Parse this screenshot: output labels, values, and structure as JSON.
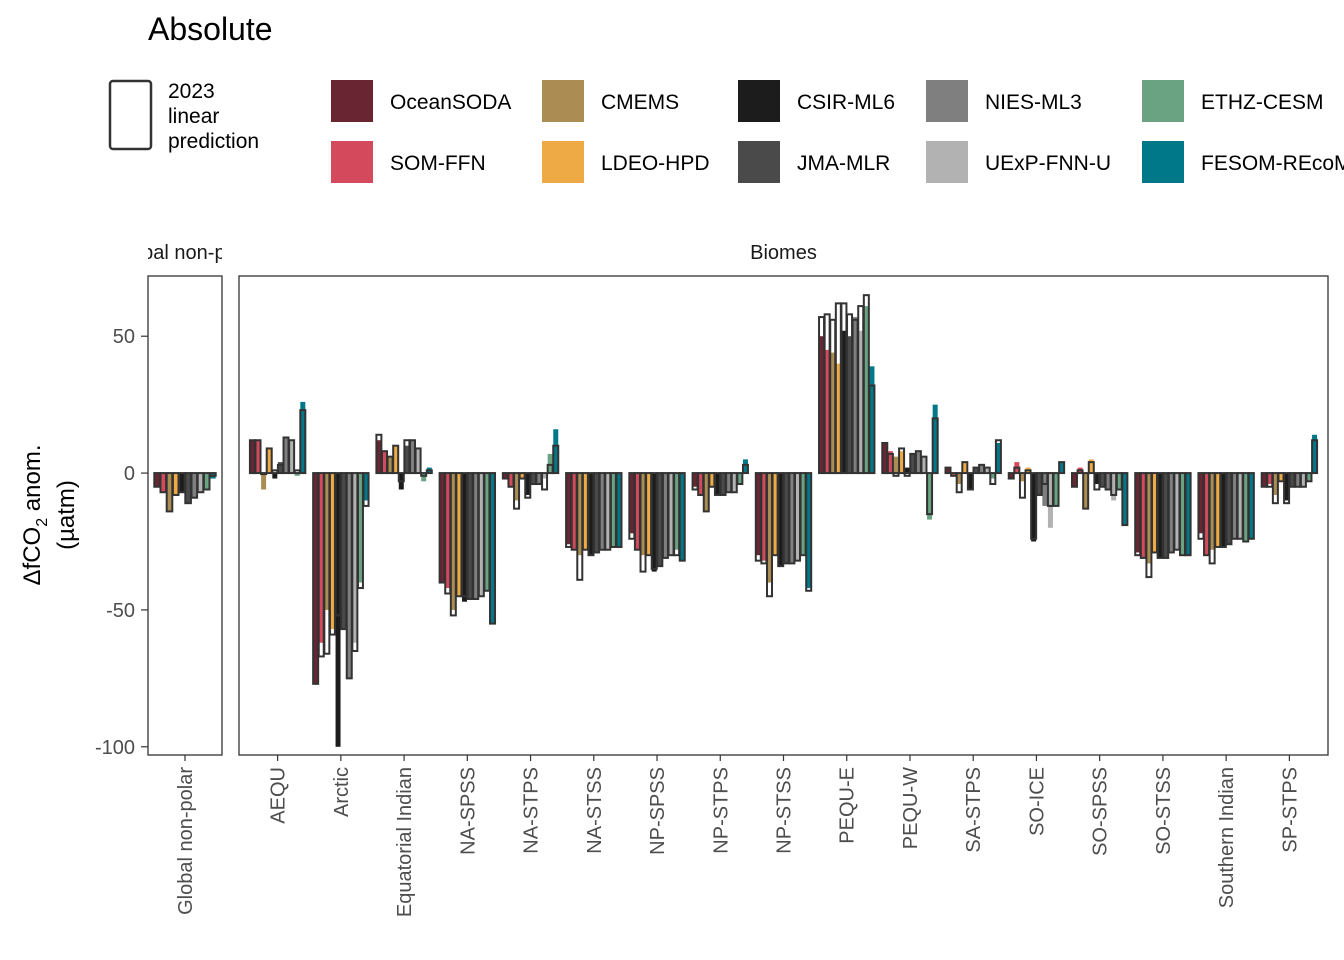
{
  "chart_data": {
    "type": "bar",
    "title": "Absolute",
    "ylabel": "ΔfCO2 anom. (µatm)",
    "ylabel_main": "ΔfCO",
    "ylabel_sub": "2",
    "ylabel_rest": " anom.",
    "ylabel_unit": "(µatm)",
    "ylim": [
      -103,
      72
    ],
    "yticks": [
      50,
      0,
      -50,
      -100
    ],
    "ytick_labels": [
      "50",
      "0",
      "-50",
      "-100"
    ],
    "grid": false,
    "legend_position": "top",
    "legend_outline_label": [
      "2023",
      "linear",
      "prediction"
    ],
    "panels": [
      {
        "label": "Global non-polar",
        "strip": "Global non-polar"
      },
      {
        "label": "Biomes",
        "strip": "Biomes"
      }
    ],
    "series": [
      {
        "name": "OceanSODA",
        "color": "#6a2532"
      },
      {
        "name": "SOM-FFN",
        "color": "#d44a5c"
      },
      {
        "name": "CMEMS",
        "color": "#ab8c52"
      },
      {
        "name": "LDEO-HPD",
        "color": "#eeab45"
      },
      {
        "name": "CSIR-ML6",
        "color": "#1c1c1c"
      },
      {
        "name": "JMA-MLR",
        "color": "#4a4a4a"
      },
      {
        "name": "NIES-ML3",
        "color": "#7f7f7f"
      },
      {
        "name": "UExP-FNN-U",
        "color": "#b2b2b2"
      },
      {
        "name": "ETHZ-CESM",
        "color": "#69a382"
      },
      {
        "name": "FESOM-REcoM",
        "color": "#00788a"
      }
    ],
    "legend_layout": [
      [
        "OceanSODA",
        "CMEMS",
        "CSIR-ML6",
        "NIES-ML3",
        "ETHZ-CESM"
      ],
      [
        "SOM-FFN",
        "LDEO-HPD",
        "JMA-MLR",
        "UExP-FNN-U",
        "FESOM-REcoM"
      ]
    ],
    "regions": [
      {
        "name": "Global non-polar",
        "panel": 0,
        "values": [
          -5,
          -7,
          -14,
          -8,
          -7,
          -11,
          -9,
          -7,
          -6,
          -2
        ],
        "predicted": [
          -5,
          -7,
          -14,
          -8,
          -7,
          -11,
          -9,
          -7,
          -6,
          -1
        ]
      },
      {
        "name": "AEQU",
        "panel": 1,
        "values": [
          12,
          12,
          -6,
          9,
          -2,
          4,
          13,
          12,
          -1,
          26
        ],
        "predicted": [
          12,
          12,
          0,
          9,
          1,
          3,
          13,
          12,
          1,
          23
        ]
      },
      {
        "name": "Arctic",
        "panel": 1,
        "values": [
          -77,
          -62,
          -50,
          -57,
          -100,
          -57,
          -75,
          -62,
          -40,
          -10
        ],
        "predicted": [
          -77,
          -67,
          -66,
          -59,
          -52,
          -57,
          -75,
          -65,
          -42,
          -12
        ]
      },
      {
        "name": "Equatorial Indian",
        "panel": 1,
        "values": [
          12,
          8,
          6,
          10,
          -6,
          10,
          12,
          9,
          -3,
          2
        ],
        "predicted": [
          14,
          8,
          6,
          10,
          -3,
          12,
          12,
          9,
          -1,
          1
        ]
      },
      {
        "name": "NA-SPSS",
        "panel": 1,
        "values": [
          -40,
          -42,
          -50,
          -45,
          -47,
          -46,
          -46,
          -45,
          -43,
          -55
        ],
        "predicted": [
          -40,
          -44,
          -52,
          -45,
          -45,
          -46,
          -46,
          -45,
          -43,
          -55
        ]
      },
      {
        "name": "NA-STPS",
        "panel": 1,
        "values": [
          -2,
          -5,
          -10,
          -2,
          -8,
          -4,
          -4,
          -2,
          7,
          16
        ],
        "predicted": [
          -2,
          -5,
          -13,
          -2,
          -9,
          -4,
          -4,
          -6,
          3,
          10
        ]
      },
      {
        "name": "NA-STSS",
        "panel": 1,
        "values": [
          -26,
          -28,
          -30,
          -28,
          -30,
          -29,
          -28,
          -28,
          -27,
          -27
        ],
        "predicted": [
          -27,
          -28,
          -39,
          -28,
          -30,
          -29,
          -28,
          -28,
          -27,
          -27
        ]
      },
      {
        "name": "NP-SPSS",
        "panel": 1,
        "values": [
          -22,
          -28,
          -30,
          -30,
          -36,
          -34,
          -31,
          -30,
          -28,
          -32
        ],
        "predicted": [
          -24,
          -28,
          -36,
          -30,
          -35,
          -34,
          -31,
          -30,
          -30,
          -32
        ]
      },
      {
        "name": "NP-STPS",
        "panel": 1,
        "values": [
          -5,
          -8,
          -14,
          -5,
          -8,
          -8,
          -7,
          -7,
          -4,
          5
        ],
        "predicted": [
          -6,
          -8,
          -14,
          -5,
          -8,
          -8,
          -7,
          -7,
          -4,
          3
        ]
      },
      {
        "name": "NP-STSS",
        "panel": 1,
        "values": [
          -30,
          -32,
          -40,
          -30,
          -34,
          -33,
          -33,
          -32,
          -30,
          -42
        ],
        "predicted": [
          -32,
          -33,
          -45,
          -30,
          -34,
          -33,
          -33,
          -32,
          -30,
          -43
        ]
      },
      {
        "name": "PEQU-E",
        "panel": 1,
        "values": [
          50,
          45,
          44,
          40,
          52,
          50,
          57,
          52,
          61,
          39
        ],
        "predicted": [
          57,
          58,
          56,
          62,
          62,
          58,
          56,
          61,
          65,
          32
        ]
      },
      {
        "name": "PEQU-W",
        "panel": 1,
        "values": [
          11,
          8,
          6,
          8,
          2,
          7,
          8,
          6,
          -17,
          25
        ],
        "predicted": [
          11,
          7,
          -1,
          9,
          -1,
          7,
          8,
          6,
          -15,
          20
        ]
      },
      {
        "name": "SA-STPS",
        "panel": 1,
        "values": [
          2,
          -1,
          -4,
          4,
          -6,
          2,
          3,
          2,
          -2,
          11
        ],
        "predicted": [
          2,
          -1,
          -7,
          4,
          -6,
          2,
          3,
          2,
          -4,
          12
        ]
      },
      {
        "name": "SO-ICE",
        "panel": 1,
        "values": [
          -2,
          4,
          -3,
          2,
          -25,
          -8,
          -12,
          -20,
          -12,
          4
        ],
        "predicted": [
          -2,
          2,
          -9,
          1,
          -24,
          -8,
          -4,
          -12,
          -12,
          4
        ]
      },
      {
        "name": "SO-SPSS",
        "panel": 1,
        "values": [
          -5,
          2,
          -13,
          5,
          -4,
          -5,
          -6,
          -10,
          -6,
          -19
        ],
        "predicted": [
          -5,
          1,
          -13,
          4,
          -6,
          -5,
          -6,
          -8,
          -6,
          -19
        ]
      },
      {
        "name": "SO-STSS",
        "panel": 1,
        "values": [
          -29,
          -31,
          -33,
          -29,
          -31,
          -31,
          -29,
          -28,
          -30,
          -30
        ],
        "predicted": [
          -30,
          -31,
          -38,
          -29,
          -31,
          -31,
          -29,
          -28,
          -30,
          -30
        ]
      },
      {
        "name": "Southern Indian",
        "panel": 1,
        "values": [
          -22,
          -30,
          -28,
          -27,
          -27,
          -26,
          -24,
          -24,
          -25,
          -24
        ],
        "predicted": [
          -24,
          -30,
          -33,
          -27,
          -27,
          -26,
          -24,
          -24,
          -25,
          -24
        ]
      },
      {
        "name": "SP-STPS",
        "panel": 1,
        "values": [
          -5,
          -4,
          -8,
          -3,
          -10,
          -5,
          -5,
          -5,
          -3,
          14
        ],
        "predicted": [
          -5,
          -5,
          -11,
          -3,
          -11,
          -5,
          -5,
          -5,
          -3,
          12
        ]
      }
    ]
  }
}
